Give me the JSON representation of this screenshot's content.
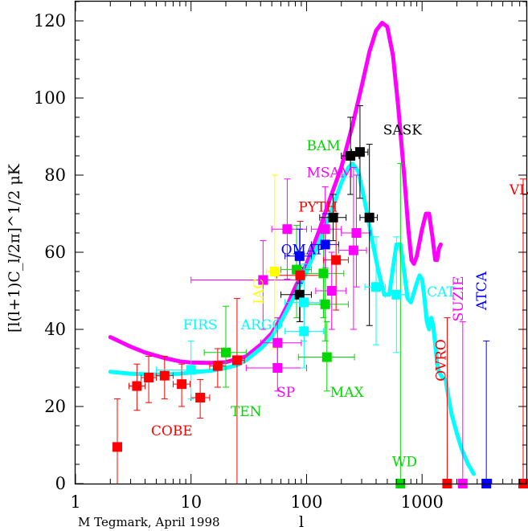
{
  "chart_data": {
    "type": "scatter",
    "ylabel": "[l(l+1)C_l/2π]^1/2 μK",
    "xlabel": "l",
    "credit": "M Tegmark, April 1998",
    "xscale": "log",
    "xlim": [
      1,
      8000
    ],
    "ylim": [
      0,
      125
    ],
    "xticks": [
      1,
      10,
      100,
      1000
    ],
    "xtick_labels": [
      "1",
      "10",
      "100",
      "1000"
    ],
    "yticks": [
      0,
      20,
      40,
      60,
      80,
      100,
      120
    ],
    "ytick_labels": [
      "0",
      "20",
      "40",
      "60",
      "80",
      "100",
      "120"
    ],
    "colors": {
      "red": "#ff0000",
      "cyan": "#00ffff",
      "green": "#00d800",
      "magenta": "#ff00ff",
      "blue": "#0000ff",
      "black": "#000000",
      "yellow": "#ffff00"
    },
    "models": [
      {
        "color": "#ff00ff",
        "width": 5,
        "points": [
          [
            2,
            38
          ],
          [
            3,
            35.5
          ],
          [
            4,
            34
          ],
          [
            6,
            32.5
          ],
          [
            8,
            31.7
          ],
          [
            10,
            31.4
          ],
          [
            15,
            31.3
          ],
          [
            20,
            31.5
          ],
          [
            30,
            33
          ],
          [
            40,
            36
          ],
          [
            50,
            39
          ],
          [
            60,
            43
          ],
          [
            70,
            47
          ],
          [
            80,
            51
          ],
          [
            100,
            57
          ],
          [
            130,
            66
          ],
          [
            160,
            74
          ],
          [
            200,
            82
          ],
          [
            250,
            93
          ],
          [
            300,
            103
          ],
          [
            350,
            112
          ],
          [
            400,
            117.5
          ],
          [
            450,
            119.5
          ],
          [
            500,
            118.5
          ],
          [
            560,
            111
          ],
          [
            620,
            98
          ],
          [
            700,
            80
          ],
          [
            760,
            66
          ],
          [
            810,
            58
          ],
          [
            850,
            57
          ],
          [
            900,
            59
          ],
          [
            1000,
            66
          ],
          [
            1080,
            70
          ],
          [
            1150,
            70
          ],
          [
            1230,
            64
          ],
          [
            1300,
            58
          ],
          [
            1350,
            58
          ],
          [
            1400,
            61
          ],
          [
            1450,
            62
          ]
        ]
      },
      {
        "color": "#00ffff",
        "width": 5,
        "points": [
          [
            2,
            29
          ],
          [
            3,
            28.5
          ],
          [
            5,
            28.3
          ],
          [
            8,
            28.5
          ],
          [
            10,
            28.8
          ],
          [
            15,
            29.3
          ],
          [
            20,
            30
          ],
          [
            25,
            30.7
          ],
          [
            30,
            32
          ],
          [
            40,
            35
          ],
          [
            50,
            38
          ],
          [
            60,
            42
          ],
          [
            80,
            49
          ],
          [
            100,
            55
          ],
          [
            130,
            63
          ],
          [
            170,
            72
          ],
          [
            200,
            78
          ],
          [
            230,
            82
          ],
          [
            250,
            83
          ],
          [
            280,
            81
          ],
          [
            300,
            77
          ],
          [
            330,
            71
          ],
          [
            370,
            63
          ],
          [
            420,
            55
          ],
          [
            470,
            49
          ],
          [
            520,
            49
          ],
          [
            560,
            56
          ],
          [
            600,
            62
          ],
          [
            650,
            62
          ],
          [
            700,
            55
          ],
          [
            750,
            48
          ],
          [
            800,
            47
          ],
          [
            900,
            52
          ],
          [
            950,
            54
          ],
          [
            1000,
            53
          ],
          [
            1050,
            48
          ],
          [
            1100,
            42
          ],
          [
            1150,
            40
          ],
          [
            1200,
            43
          ],
          [
            1250,
            41
          ],
          [
            1300,
            36
          ],
          [
            1350,
            31
          ],
          [
            1400,
            29
          ],
          [
            1500,
            27.5
          ],
          [
            1600,
            27
          ],
          [
            1700,
            22
          ],
          [
            1800,
            18
          ],
          [
            2000,
            13
          ],
          [
            2200,
            9
          ],
          [
            2500,
            5
          ],
          [
            2800,
            2.5
          ]
        ]
      }
    ],
    "points": [
      {
        "x": 2.3,
        "y": 9.5,
        "color": "#ff0000",
        "ylo": 0,
        "yhi": 22
      },
      {
        "x": 3.4,
        "y": 25.3,
        "color": "#ff0000",
        "ylo": 19,
        "yhi": 31,
        "xlo": 2.9,
        "xhi": 4.0
      },
      {
        "x": 4.3,
        "y": 27.5,
        "color": "#ff0000",
        "ylo": 21,
        "yhi": 33,
        "xlo": 3.7,
        "xhi": 5.0
      },
      {
        "x": 5.9,
        "y": 28,
        "color": "#ff0000",
        "ylo": 22,
        "yhi": 33,
        "xlo": 5.0,
        "xhi": 7.0
      },
      {
        "x": 8.3,
        "y": 25.8,
        "color": "#ff0000",
        "ylo": 20,
        "yhi": 31,
        "xlo": 7.0,
        "xhi": 9.8
      },
      {
        "x": 12,
        "y": 22.3,
        "color": "#ff0000",
        "ylo": 17,
        "yhi": 27,
        "xlo": 10,
        "xhi": 14.5
      },
      {
        "x": 17,
        "y": 30.5,
        "color": "#ff0000",
        "ylo": 25,
        "yhi": 35,
        "xlo": 14.5,
        "xhi": 20
      },
      {
        "x": 25,
        "y": 32,
        "color": "#ff0000",
        "ylo": 0,
        "yhi": 48,
        "xlo": 20,
        "xhi": 29
      },
      {
        "x": 10,
        "y": 29.5,
        "color": "#00ffff",
        "ylo": 22,
        "yhi": 37,
        "xlo": 5,
        "xhi": 20
      },
      {
        "x": 20,
        "y": 34,
        "color": "#00d800",
        "ylo": 25,
        "yhi": 46,
        "xlo": 13,
        "xhi": 30
      },
      {
        "x": 42,
        "y": 52.8,
        "color": "#ff00ff",
        "ylo": 40,
        "yhi": 63,
        "xlo": 10,
        "xhi": 90
      },
      {
        "x": 53,
        "y": 55,
        "color": "#ffff00",
        "ylo": 35,
        "yhi": 80,
        "xlo": 45,
        "xhi": 60
      },
      {
        "x": 56,
        "y": 36.5,
        "color": "#ff00ff",
        "ylo": 30,
        "yhi": 43,
        "xlo": 40,
        "xhi": 90
      },
      {
        "x": 56,
        "y": 30,
        "color": "#ff00ff",
        "ylo": 24,
        "yhi": 36,
        "xlo": 30,
        "xhi": 100
      },
      {
        "x": 68,
        "y": 66,
        "color": "#ff00ff",
        "ylo": 53,
        "yhi": 79,
        "xlo": 50,
        "xhi": 100
      },
      {
        "x": 82,
        "y": 55.5,
        "color": "#00d800",
        "ylo": 43,
        "yhi": 67,
        "xlo": 60,
        "xhi": 110
      },
      {
        "x": 87,
        "y": 59,
        "color": "#0000ff",
        "ylo": 52,
        "yhi": 66,
        "xlo": 65,
        "xhi": 110
      },
      {
        "x": 88,
        "y": 54,
        "color": "#ff0000",
        "ylo": 42,
        "yhi": 68,
        "xlo": 55,
        "xhi": 140
      },
      {
        "x": 87,
        "y": 49,
        "color": "#000000",
        "ylo": 42,
        "yhi": 56,
        "xlo": 60,
        "xhi": 110
      },
      {
        "x": 95,
        "y": 47,
        "color": "#00ffff",
        "ylo": 37,
        "yhi": 57,
        "xlo": 65,
        "xhi": 130
      },
      {
        "x": 95,
        "y": 39.5,
        "color": "#00ffff",
        "ylo": 30,
        "yhi": 48,
        "xlo": 65,
        "xhi": 140
      },
      {
        "x": 140,
        "y": 54.5,
        "color": "#00d800",
        "ylo": 43,
        "yhi": 65,
        "xlo": 90,
        "xhi": 210
      },
      {
        "x": 145,
        "y": 46.5,
        "color": "#00d800",
        "ylo": 37,
        "yhi": 56,
        "xlo": 90,
        "xhi": 230
      },
      {
        "x": 145,
        "y": 62,
        "color": "#0000ff",
        "ylo": 54,
        "yhi": 70,
        "xlo": 110,
        "xhi": 190
      },
      {
        "x": 145,
        "y": 66,
        "color": "#ff00ff",
        "ylo": 55,
        "yhi": 77,
        "xlo": 110,
        "xhi": 200
      },
      {
        "x": 150,
        "y": 32.8,
        "color": "#00d800",
        "ylo": 24,
        "yhi": 42,
        "xlo": 85,
        "xhi": 260
      },
      {
        "x": 165,
        "y": 50,
        "color": "#ff00ff",
        "ylo": 40,
        "yhi": 60,
        "xlo": 120,
        "xhi": 220
      },
      {
        "x": 170,
        "y": 69,
        "color": "#000000",
        "ylo": 63,
        "yhi": 75,
        "xlo": 130,
        "xhi": 220
      },
      {
        "x": 180,
        "y": 58,
        "color": "#ff0000",
        "ylo": 45,
        "yhi": 70,
        "xlo": 140,
        "xhi": 230
      },
      {
        "x": 240,
        "y": 85,
        "color": "#000000",
        "ylo": 75,
        "yhi": 95,
        "xlo": 200,
        "xhi": 285
      },
      {
        "x": 255,
        "y": 60.5,
        "color": "#ff00ff",
        "ylo": 40,
        "yhi": 82,
        "xlo": 190,
        "xhi": 330
      },
      {
        "x": 270,
        "y": 65,
        "color": "#ff00ff",
        "ylo": 51,
        "yhi": 80,
        "xlo": 200,
        "xhi": 360
      },
      {
        "x": 290,
        "y": 86,
        "color": "#000000",
        "ylo": 74,
        "yhi": 98,
        "xlo": 245,
        "xhi": 340
      },
      {
        "x": 350,
        "y": 69,
        "color": "#000000",
        "ylo": 41,
        "yhi": 88,
        "xlo": 290,
        "xhi": 410
      },
      {
        "x": 400,
        "y": 51,
        "color": "#00ffff",
        "ylo": 36,
        "yhi": 64,
        "xlo": 320,
        "xhi": 480
      },
      {
        "x": 600,
        "y": 49,
        "color": "#00ffff",
        "ylo": 34,
        "yhi": 64,
        "xlo": 480,
        "xhi": 720
      },
      {
        "x": 650,
        "y": 0,
        "color": "#00d800",
        "ylo": 0,
        "yhi": 83
      },
      {
        "x": 1650,
        "y": 0,
        "color": "#ff0000",
        "ylo": 0,
        "yhi": 43
      },
      {
        "x": 2250,
        "y": 0,
        "color": "#ff00ff",
        "ylo": 0,
        "yhi": 42
      },
      {
        "x": 3600,
        "y": 0,
        "color": "#0000ff",
        "ylo": 0,
        "yhi": 37
      },
      {
        "x": 7500,
        "y": 0,
        "color": "#ff0000",
        "ylo": 0,
        "yhi": 79
      }
    ],
    "annotations": [
      {
        "text": "COBE",
        "color": "#ff0000",
        "x": 4.5,
        "y": 12.5,
        "rot": 0
      },
      {
        "text": "FIRS",
        "color": "#00ffff",
        "x": 8.5,
        "y": 40,
        "rot": 0
      },
      {
        "text": "TEN",
        "color": "#00d800",
        "x": 22,
        "y": 17.5,
        "rot": 0
      },
      {
        "text": "ARGO",
        "color": "#00ffff",
        "x": 27,
        "y": 40,
        "rot": 0
      },
      {
        "text": "IAC",
        "color": "#ffff00",
        "x": 42,
        "y": 46.5,
        "rot": -90
      },
      {
        "text": "SP",
        "color": "#ff00ff",
        "x": 55,
        "y": 22.5,
        "rot": 0
      },
      {
        "text": "MAX",
        "color": "#00d800",
        "x": 160,
        "y": 22.5,
        "rot": 0
      },
      {
        "text": "QMAP",
        "color": "#0000ff",
        "x": 60,
        "y": 59.5,
        "rot": 0
      },
      {
        "text": "PYTH",
        "color": "#ff0000",
        "x": 85,
        "y": 70.5,
        "rot": 0
      },
      {
        "text": "MSAM",
        "color": "#ff00ff",
        "x": 100,
        "y": 79.5,
        "rot": 0
      },
      {
        "text": "BAM",
        "color": "#00d800",
        "x": 100,
        "y": 86.5,
        "rot": 0
      },
      {
        "text": "SASK",
        "color": "#000000",
        "x": 460,
        "y": 90.5,
        "rot": 0
      },
      {
        "text": "CAT",
        "color": "#00ffff",
        "x": 1100,
        "y": 48.5,
        "rot": 0
      },
      {
        "text": "SUZIE",
        "color": "#ff00ff",
        "x": 2250,
        "y": 42,
        "rot": -90
      },
      {
        "text": "ATCA",
        "color": "#0000ff",
        "x": 3600,
        "y": 45,
        "rot": -90
      },
      {
        "text": "OVRO",
        "color": "#ff0000",
        "x": 1600,
        "y": 26.5,
        "rot": -90
      },
      {
        "text": "VLA",
        "color": "#ff0000",
        "x": 5700,
        "y": 75,
        "rot": 0
      },
      {
        "text": "WD",
        "color": "#00d800",
        "x": 550,
        "y": 4.5,
        "rot": 0
      }
    ]
  }
}
